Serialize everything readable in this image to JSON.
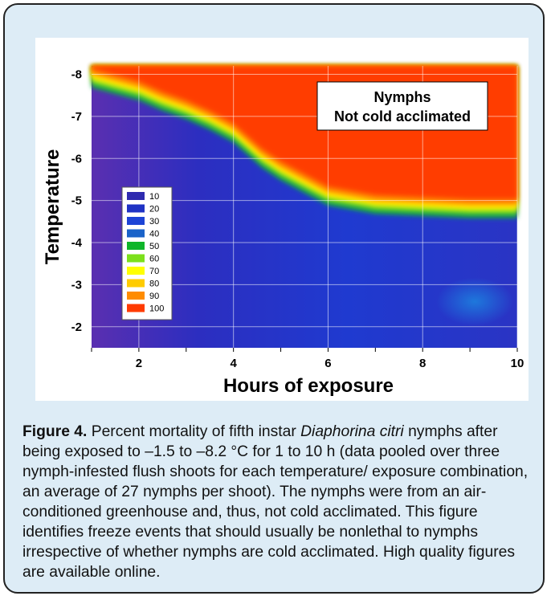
{
  "chart_data": {
    "type": "heatmap",
    "subtype": "filled contour",
    "title": "",
    "annotation_lines": [
      "Nymphs",
      "Not cold acclimated"
    ],
    "xlabel": "Hours of exposure",
    "ylabel": "Temperature",
    "xlim": [
      1,
      10
    ],
    "ylim": [
      -1.5,
      -8.2
    ],
    "x_ticks": [
      2,
      4,
      6,
      8,
      10
    ],
    "y_ticks": [
      -8,
      -7,
      -6,
      -5,
      -4,
      -3,
      -2
    ],
    "grid": true,
    "legend_position": "left",
    "legend": [
      {
        "value": "10",
        "color": "#2f2bb0"
      },
      {
        "value": "20",
        "color": "#1f33c4"
      },
      {
        "value": "30",
        "color": "#1d44d6"
      },
      {
        "value": "40",
        "color": "#1a63c9"
      },
      {
        "value": "50",
        "color": "#0fb52a"
      },
      {
        "value": "60",
        "color": "#7ce01c"
      },
      {
        "value": "70",
        "color": "#ffff00"
      },
      {
        "value": "80",
        "color": "#ffcc00"
      },
      {
        "value": "90",
        "color": "#ff8c00"
      },
      {
        "value": "100",
        "color": "#ff3b00"
      }
    ],
    "boundary_50pct": {
      "x": [
        1,
        1.5,
        2,
        2.5,
        3,
        3.5,
        4,
        4.3,
        4.6,
        5,
        5.5,
        6,
        7,
        8,
        9,
        10
      ],
      "y": [
        -8.1,
        -7.95,
        -7.8,
        -7.55,
        -7.35,
        -7.1,
        -6.8,
        -6.5,
        -6.2,
        -5.9,
        -5.6,
        -5.3,
        -5.1,
        -5.05,
        -5.0,
        -5.0
      ]
    },
    "mortality_zones": [
      {
        "region": "upper-right (colder, longer exposure)",
        "percent_mortality": 100
      },
      {
        "region": "lower-left (warmer, shorter exposure)",
        "percent_mortality": 10
      }
    ]
  },
  "caption": {
    "fig_label": "Figure 4.",
    "text_before_species": " Percent mortality of fifth instar ",
    "species": "Diaphorina citri",
    "text_after_species": " nymphs after being exposed to –1.5 to –8.2 °C for 1 to 10 h (data pooled over three nymph-infested flush shoots for each temperature/ exposure combination, an average of 27 nymphs per shoot).  The nymphs were from an air-conditioned greenhouse and, thus, not cold acclimated.  This figure identifies freeze events that should usually be nonlethal to nymphs irrespective of whether nymphs are cold acclimated. High quality figures are available online."
  }
}
